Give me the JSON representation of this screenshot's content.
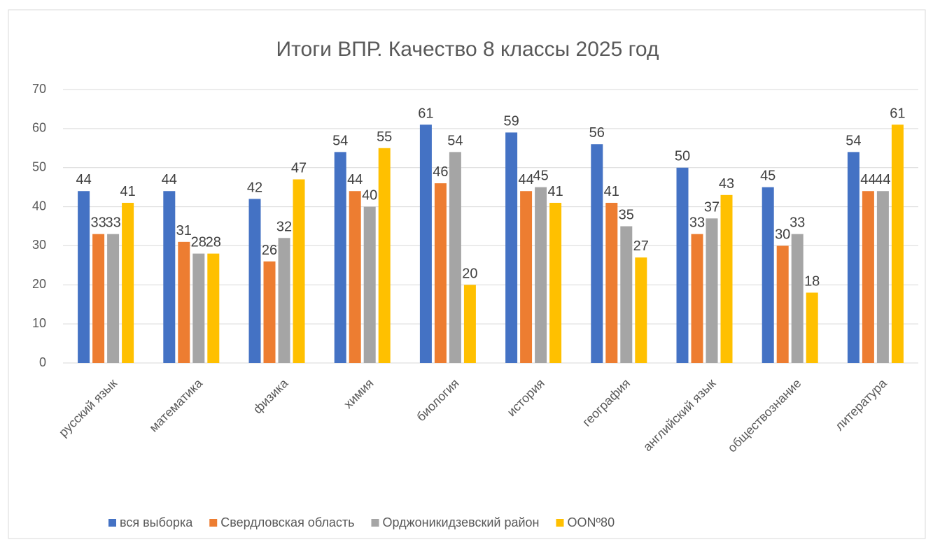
{
  "chart_data": {
    "type": "bar",
    "title": "Итоги ВПР. Качество 8 классы 2025 год",
    "categories": [
      "русский язык",
      "математика",
      "физика",
      "химия",
      "биология",
      "история",
      "география",
      "английский язык",
      "обществознание",
      "литература"
    ],
    "series": [
      {
        "name": "вся выборка",
        "color": "#4472c4",
        "values": [
          44,
          44,
          42,
          54,
          61,
          59,
          56,
          50,
          45,
          54
        ]
      },
      {
        "name": "Свердловская область",
        "color": "#ed7d31",
        "values": [
          33,
          31,
          26,
          44,
          46,
          44,
          41,
          33,
          30,
          44
        ]
      },
      {
        "name": "Орджоникидзевский район",
        "color": "#a5a5a5",
        "values": [
          33,
          28,
          32,
          40,
          54,
          45,
          35,
          37,
          33,
          44
        ]
      },
      {
        "name": "ООNº80",
        "color": "#ffc000",
        "values": [
          41,
          28,
          47,
          55,
          20,
          41,
          27,
          43,
          18,
          61
        ]
      }
    ],
    "ylim": [
      0,
      70
    ],
    "yticks": [
      0,
      10,
      20,
      30,
      40,
      50,
      60,
      70
    ],
    "grid": true,
    "legend": "bottom"
  }
}
